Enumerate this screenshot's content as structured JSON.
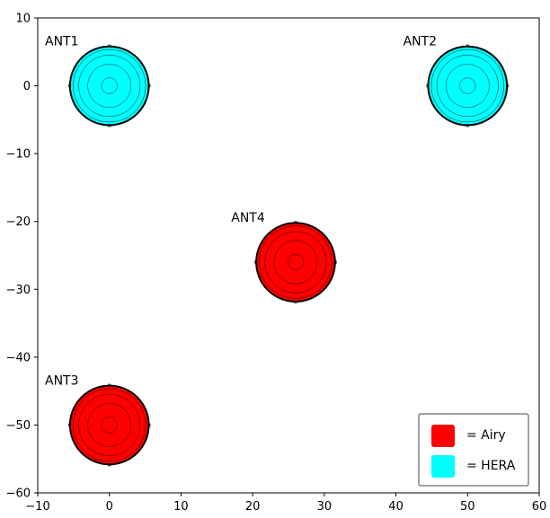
{
  "chart_data": {
    "type": "scatter",
    "title": "",
    "xlabel": "",
    "ylabel": "",
    "xlim": [
      -10,
      60
    ],
    "ylim": [
      -60,
      10
    ],
    "xticks": [
      -10,
      0,
      10,
      20,
      30,
      40,
      50,
      60
    ],
    "yticks": [
      10,
      0,
      -10,
      -20,
      -30,
      -40,
      -50,
      -60
    ],
    "xtick_labels": [
      "−10",
      "0",
      "10",
      "20",
      "30",
      "40",
      "50",
      "60"
    ],
    "ytick_labels": [
      "10",
      "0",
      "−10",
      "−20",
      "−30",
      "−40",
      "−50",
      "−60"
    ],
    "grid": false,
    "dish_radius": 5.5,
    "ring_radii_fraction": [
      1.0,
      0.92,
      0.78,
      0.55,
      0.2
    ],
    "antennas": [
      {
        "name": "ANT1",
        "x": 0,
        "y": 0,
        "beam": "HERA"
      },
      {
        "name": "ANT2",
        "x": 50,
        "y": 0,
        "beam": "HERA"
      },
      {
        "name": "ANT3",
        "x": 0,
        "y": -50,
        "beam": "Airy"
      },
      {
        "name": "ANT4",
        "x": 26,
        "y": -26,
        "beam": "Airy"
      }
    ],
    "legend": {
      "placement": "bottom-right",
      "entries": [
        {
          "label": "= Airy",
          "color": "#ff0000"
        },
        {
          "label": "= HERA",
          "color": "#00ffff"
        }
      ]
    }
  }
}
